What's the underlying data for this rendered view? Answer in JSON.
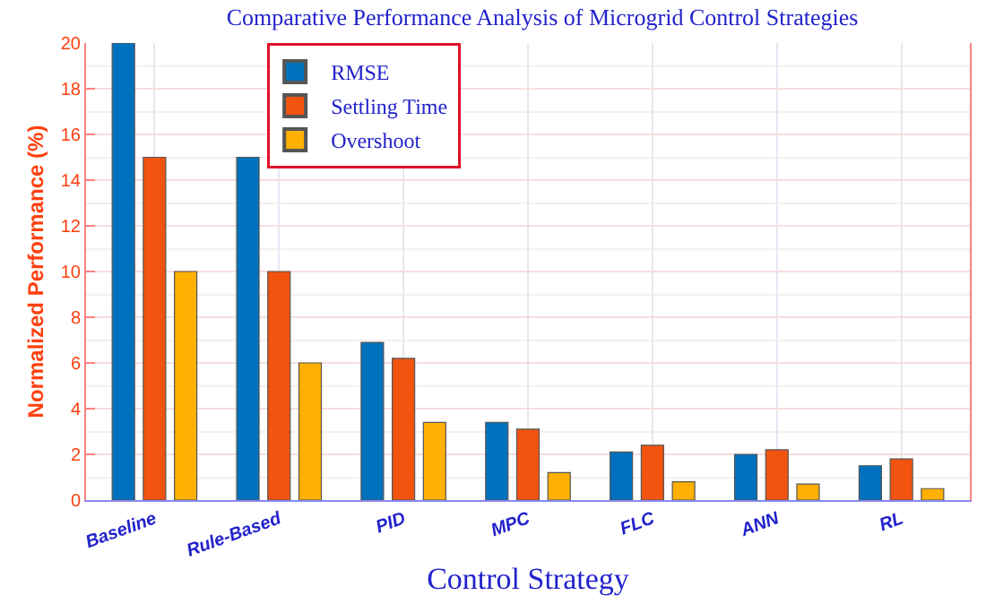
{
  "chart_data": {
    "type": "bar",
    "title": "Comparative Performance Analysis of Microgrid Control Strategies",
    "xlabel": "Control Strategy",
    "ylabel": "Normalized Performance (%)",
    "categories": [
      "Baseline",
      "Rule-Based",
      "PID",
      "MPC",
      "FLC",
      "ANN",
      "RL"
    ],
    "series": [
      {
        "name": "RMSE",
        "color": "#0072bd",
        "values": [
          20,
          15,
          6.9,
          3.4,
          2.1,
          2.0,
          1.5
        ]
      },
      {
        "name": "Settling Time",
        "color": "#f25410",
        "values": [
          15,
          10,
          6.2,
          3.1,
          2.4,
          2.2,
          1.8
        ]
      },
      {
        "name": "Overshoot",
        "color": "#ffb000",
        "values": [
          10,
          6,
          3.4,
          1.2,
          0.8,
          0.7,
          0.5
        ]
      }
    ],
    "ylim": [
      0,
      20
    ],
    "yticks": [
      0,
      2,
      4,
      6,
      8,
      10,
      12,
      14,
      16,
      18,
      20
    ],
    "grid": true,
    "legend": "top left"
  }
}
